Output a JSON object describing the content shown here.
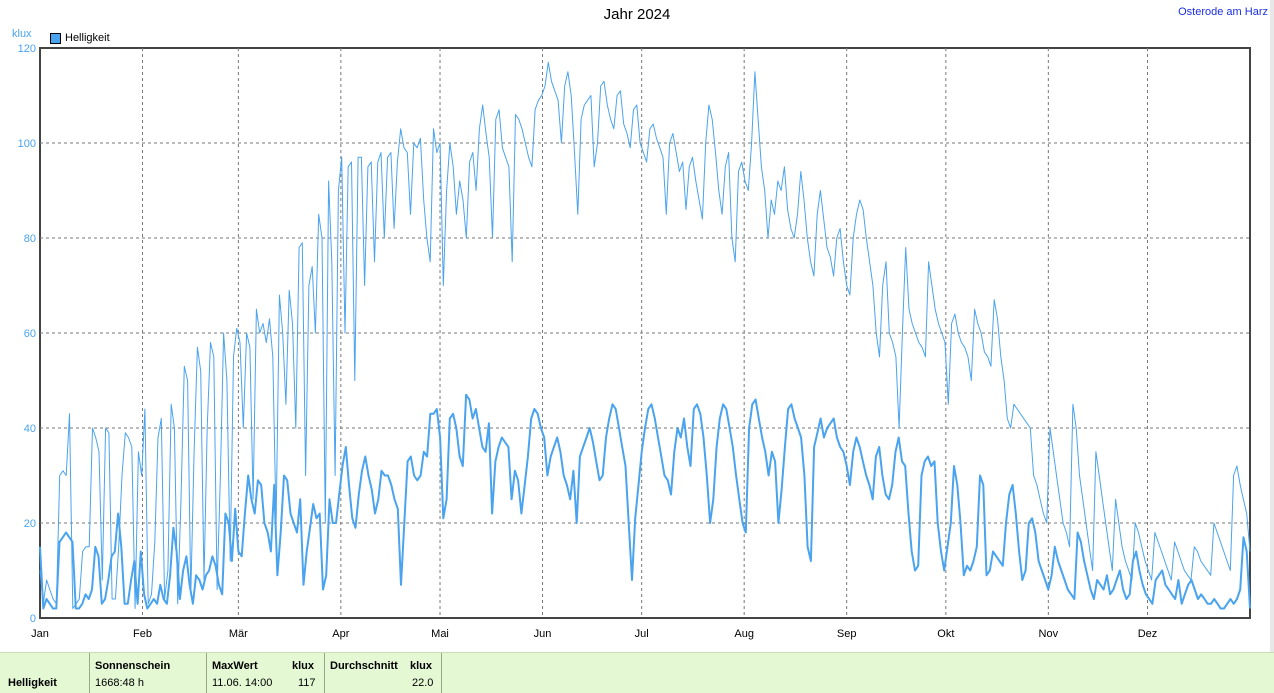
{
  "title": "Jahr 2024",
  "location": "Osterode am Harz",
  "unit": "klux",
  "legend": {
    "label": "Helligkeit",
    "color": "#4aa3ef"
  },
  "footer": {
    "row_label": "Helligkeit",
    "sunshine_header": "Sonnenschein",
    "sunshine_value": "1668:48 h",
    "max_header": "MaxWert",
    "max_unit": "klux",
    "max_date": "11.06.  14:00",
    "max_value": "117",
    "avg_header": "Durchschnitt",
    "avg_unit": "klux",
    "avg_value": "22.0"
  },
  "chart_data": {
    "type": "line",
    "title": "Jahr 2024",
    "ylabel": "klux",
    "ylim": [
      0,
      120
    ],
    "yticks": [
      "0",
      "20",
      "40",
      "60",
      "80",
      "100",
      "120"
    ],
    "xlim": [
      0,
      366
    ],
    "xticks": [
      {
        "label": "Jan",
        "day": 0
      },
      {
        "label": "Feb",
        "day": 31
      },
      {
        "label": "Mär",
        "day": 60
      },
      {
        "label": "Apr",
        "day": 91
      },
      {
        "label": "Mai",
        "day": 121
      },
      {
        "label": "Jun",
        "day": 152
      },
      {
        "label": "Jul",
        "day": 182
      },
      {
        "label": "Aug",
        "day": 213
      },
      {
        "label": "Sep",
        "day": 244
      },
      {
        "label": "Okt",
        "day": 274
      },
      {
        "label": "Nov",
        "day": 305
      },
      {
        "label": "Dez",
        "day": 335
      }
    ],
    "grid": true,
    "legend_position": "top-left",
    "series": [
      {
        "name": "Helligkeit",
        "color": "#4aa3ef",
        "values": [
          15,
          2,
          4,
          3,
          2,
          2,
          16,
          17,
          18,
          17,
          16,
          2,
          2,
          3,
          5,
          4,
          6,
          15,
          13,
          3,
          4,
          8,
          13,
          14,
          22,
          15,
          3,
          3,
          8,
          12,
          3,
          14,
          5,
          2,
          3,
          4,
          3,
          7,
          4,
          3,
          9,
          19,
          14,
          4,
          10,
          13,
          7,
          3,
          9,
          8,
          6,
          9,
          10,
          13,
          11,
          7,
          5,
          22,
          20,
          12,
          23,
          14,
          13,
          22,
          30,
          25,
          22,
          29,
          28,
          20,
          18,
          14,
          28,
          9,
          18,
          30,
          29,
          22,
          20,
          18,
          25,
          7,
          14,
          19,
          24,
          21,
          22,
          6,
          9,
          25,
          20,
          20,
          26,
          32,
          36,
          28,
          21,
          19,
          26,
          31,
          34,
          30,
          27,
          22,
          25,
          31,
          30,
          30,
          28,
          25,
          23,
          7,
          20,
          33,
          34,
          30,
          29,
          30,
          35,
          34,
          43,
          43,
          44,
          38,
          21,
          25,
          42,
          43,
          40,
          34,
          32,
          47,
          46,
          42,
          44,
          40,
          36,
          35,
          41,
          22,
          33,
          36,
          38,
          37,
          36,
          25,
          31,
          29,
          22,
          28,
          34,
          42,
          44,
          43,
          40,
          38,
          30,
          34,
          36,
          38,
          35,
          30,
          28,
          25,
          31,
          20,
          34,
          36,
          38,
          40,
          37,
          33,
          29,
          30,
          38,
          42,
          45,
          44,
          40,
          36,
          32,
          20,
          8,
          21,
          28,
          35,
          40,
          44,
          45,
          42,
          38,
          34,
          30,
          29,
          26,
          35,
          40,
          38,
          42,
          36,
          32,
          44,
          45,
          43,
          38,
          30,
          20,
          25,
          36,
          42,
          45,
          44,
          40,
          36,
          30,
          25,
          20,
          18,
          40,
          45,
          46,
          42,
          38,
          35,
          30,
          35,
          33,
          20,
          27,
          36,
          44,
          45,
          42,
          40,
          38,
          30,
          15,
          12,
          36,
          39,
          42,
          38,
          40,
          41,
          42,
          38,
          36,
          35,
          32,
          28,
          35,
          38,
          36,
          33,
          30,
          28,
          25,
          34,
          36,
          30,
          26,
          25,
          28,
          35,
          38,
          33,
          32,
          22,
          14,
          10,
          11,
          30,
          33,
          34,
          32,
          33,
          20,
          14,
          10,
          15,
          20,
          32,
          28,
          20,
          9,
          11,
          10,
          12,
          15,
          30,
          28,
          9,
          10,
          14,
          13,
          12,
          11,
          20,
          26,
          28,
          22,
          14,
          8,
          10,
          20,
          21,
          18,
          12,
          10,
          8,
          6,
          9,
          15,
          12,
          10,
          8,
          6,
          5,
          4,
          18,
          16,
          12,
          9,
          6,
          4,
          8,
          7,
          6,
          9,
          5,
          6,
          8,
          10,
          6,
          4,
          5,
          12,
          14,
          10,
          7,
          5,
          4,
          3,
          8,
          9,
          10,
          7,
          6,
          5,
          4,
          8,
          3,
          5,
          7,
          8,
          6,
          4,
          5,
          4,
          3,
          3,
          4,
          3,
          2,
          2,
          3,
          4,
          3,
          4,
          6,
          17,
          14,
          2
        ]
      },
      {
        "name": "",
        "color": "#4aa3ef",
        "values": [
          10,
          3,
          8,
          6,
          4,
          3,
          30,
          31,
          30,
          43,
          2,
          3,
          4,
          14,
          15,
          15,
          40,
          38,
          35,
          8,
          40,
          39,
          4,
          4,
          15,
          30,
          39,
          38,
          36,
          2,
          35,
          30,
          44,
          3,
          5,
          16,
          38,
          42,
          4,
          10,
          45,
          40,
          3,
          25,
          53,
          50,
          5,
          35,
          57,
          52,
          8,
          40,
          58,
          55,
          6,
          30,
          60,
          50,
          12,
          55,
          61,
          58,
          40,
          60,
          57,
          25,
          65,
          60,
          62,
          58,
          63,
          55,
          20,
          68,
          60,
          45,
          69,
          62,
          40,
          78,
          79,
          30,
          70,
          74,
          60,
          85,
          80,
          20,
          92,
          75,
          30,
          90,
          97,
          60,
          95,
          96,
          50,
          97,
          97,
          70,
          95,
          96,
          75,
          96,
          98,
          80,
          97,
          98,
          82,
          96,
          103,
          99,
          98,
          85,
          100,
          99,
          101,
          88,
          80,
          75,
          103,
          98,
          100,
          70,
          90,
          100,
          95,
          85,
          92,
          88,
          80,
          96,
          98,
          90,
          103,
          108,
          102,
          97,
          80,
          105,
          107,
          99,
          97,
          95,
          75,
          106,
          105,
          103,
          100,
          97,
          95,
          107,
          109,
          110,
          112,
          117,
          113,
          111,
          109,
          100,
          112,
          115,
          110,
          98,
          85,
          105,
          108,
          109,
          110,
          95,
          100,
          112,
          113,
          108,
          105,
          103,
          110,
          111,
          104,
          102,
          99,
          107,
          108,
          100,
          98,
          96,
          103,
          104,
          101,
          99,
          97,
          85,
          100,
          102,
          98,
          94,
          96,
          86,
          95,
          97,
          92,
          88,
          84,
          100,
          108,
          105,
          98,
          90,
          85,
          95,
          98,
          80,
          75,
          94,
          96,
          92,
          90,
          100,
          115,
          105,
          95,
          90,
          80,
          88,
          85,
          92,
          90,
          95,
          86,
          82,
          80,
          85,
          94,
          88,
          80,
          75,
          72,
          85,
          90,
          84,
          78,
          76,
          72,
          80,
          82,
          75,
          70,
          68,
          80,
          85,
          88,
          86,
          80,
          75,
          70,
          60,
          55,
          70,
          75,
          60,
          58,
          55,
          40,
          60,
          78,
          65,
          62,
          60,
          58,
          57,
          55,
          75,
          70,
          65,
          62,
          60,
          58,
          45,
          62,
          64,
          60,
          58,
          57,
          55,
          50,
          65,
          62,
          60,
          56,
          55,
          53,
          67,
          63,
          55,
          50,
          42,
          40,
          45,
          44,
          43,
          42,
          41,
          40,
          30,
          28,
          25,
          22,
          20,
          40,
          35,
          30,
          25,
          20,
          18,
          15,
          45,
          40,
          30,
          25,
          20,
          15,
          10,
          35,
          30,
          25,
          20,
          15,
          10,
          25,
          20,
          15,
          12,
          10,
          8,
          20,
          18,
          15,
          12,
          10,
          8,
          18,
          16,
          14,
          12,
          10,
          8,
          16,
          14,
          12,
          10,
          9,
          8,
          15,
          14,
          12,
          11,
          10,
          9,
          20,
          18,
          16,
          14,
          12,
          10,
          30,
          32,
          28,
          25,
          22,
          14
        ]
      }
    ]
  }
}
